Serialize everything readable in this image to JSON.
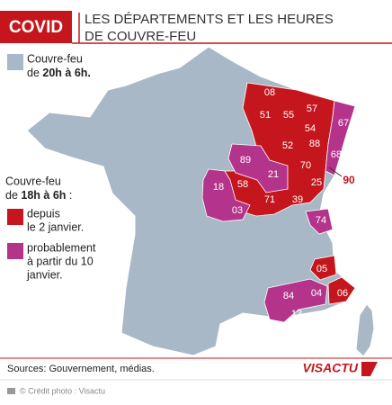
{
  "header": {
    "tag": "COVID",
    "title_lines": [
      "LES DÉPARTEMENTS ET LES HEURES",
      "DE COUVRE-FEU"
    ]
  },
  "legend": {
    "evening": {
      "color": "#a9b8c7",
      "line1": "Couvre-feu",
      "line2_prefix": "de ",
      "line2_bold": "20h à 6h."
    },
    "early": {
      "line1": "Couvre-feu",
      "line2_prefix": "de ",
      "line2_bold": "18h à 6h",
      "line2_suffix": " :"
    },
    "groups": [
      {
        "color": "#c4161c",
        "lines": [
          "depuis",
          "le 2 janvier."
        ]
      },
      {
        "color": "#b5348b",
        "lines": [
          "probablement",
          "à partir du 10",
          "janvier."
        ]
      }
    ]
  },
  "departments": {
    "since_jan2": [
      "08",
      "51",
      "55",
      "57",
      "54",
      "52",
      "88",
      "70",
      "25",
      "39",
      "71",
      "58",
      "05",
      "06",
      "90"
    ],
    "from_jan10": [
      "67",
      "68",
      "89",
      "21",
      "18",
      "03",
      "74",
      "84",
      "04",
      "13"
    ]
  },
  "footer": {
    "source": "Sources: Gouvernement, médias.",
    "logo": "VISACTU",
    "credit": "© Crédit photo : Visactu"
  }
}
